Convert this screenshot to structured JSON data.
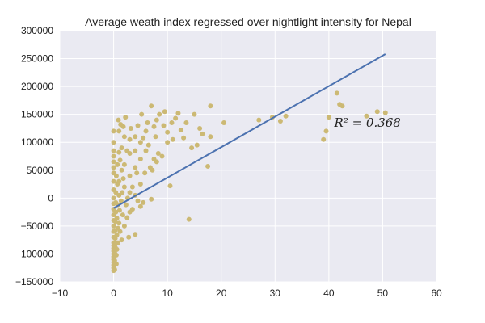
{
  "chart_data": {
    "type": "scatter",
    "title": "Average weath index regressed over nightlight intensity for Nepal",
    "xlabel": "",
    "ylabel": "",
    "xlim": [
      -10,
      60
    ],
    "ylim": [
      -150000,
      300000
    ],
    "xticks": [
      -10,
      0,
      10,
      20,
      30,
      40,
      50,
      60
    ],
    "yticks": [
      -150000,
      -100000,
      -50000,
      0,
      50000,
      100000,
      150000,
      200000,
      250000,
      300000
    ],
    "grid": true,
    "colors": {
      "background": "#EAEAF2",
      "grid": "#FFFFFF",
      "points": "#CCB974",
      "line": "#4C72B0"
    },
    "annotation": {
      "text": "R² = 0.368",
      "x": 41,
      "y": 135000
    },
    "regression": {
      "x": [
        0,
        50.5
      ],
      "y": [
        -18000,
        258000
      ]
    },
    "points": [
      [
        0,
        -130000
      ],
      [
        0,
        -125000
      ],
      [
        0,
        -120000
      ],
      [
        0,
        -115000
      ],
      [
        0,
        -110000
      ],
      [
        0,
        -105000
      ],
      [
        0,
        -100000
      ],
      [
        0,
        -95000
      ],
      [
        0,
        -90000
      ],
      [
        0,
        -85000
      ],
      [
        0,
        -80000
      ],
      [
        0,
        -70000
      ],
      [
        0,
        -60000
      ],
      [
        0,
        -50000
      ],
      [
        0,
        -40000
      ],
      [
        0,
        -30000
      ],
      [
        0,
        -20000
      ],
      [
        0,
        -10000
      ],
      [
        0,
        0
      ],
      [
        0,
        15000
      ],
      [
        0,
        30000
      ],
      [
        0,
        45000
      ],
      [
        0,
        55000
      ],
      [
        0,
        65000
      ],
      [
        0,
        75000
      ],
      [
        0,
        85000
      ],
      [
        0,
        100000
      ],
      [
        0,
        120000
      ],
      [
        0.2,
        -128000
      ],
      [
        0.2,
        -112000
      ],
      [
        0.2,
        -98000
      ],
      [
        0.3,
        -88000
      ],
      [
        0.3,
        -72000
      ],
      [
        0.3,
        -58000
      ],
      [
        0.3,
        -42000
      ],
      [
        0.4,
        -25000
      ],
      [
        0.4,
        -8000
      ],
      [
        0.4,
        10000
      ],
      [
        0.5,
        40000
      ],
      [
        0.5,
        -118000
      ],
      [
        0.5,
        -102000
      ],
      [
        0.6,
        -92000
      ],
      [
        0.6,
        -66000
      ],
      [
        0.6,
        -36000
      ],
      [
        0.7,
        25000
      ],
      [
        0.7,
        60000
      ],
      [
        0.8,
        -80000
      ],
      [
        0.8,
        -54000
      ],
      [
        0.8,
        -12000
      ],
      [
        0.9,
        140000
      ],
      [
        1,
        -45000
      ],
      [
        1,
        5000
      ],
      [
        1,
        30000
      ],
      [
        1,
        82000
      ],
      [
        1,
        120000
      ],
      [
        1.1,
        -22000
      ],
      [
        1.2,
        -60000
      ],
      [
        1.2,
        68000
      ],
      [
        1.3,
        132000
      ],
      [
        1.4,
        -5000
      ],
      [
        1.5,
        -75000
      ],
      [
        1.5,
        50000
      ],
      [
        1.5,
        90000
      ],
      [
        1.6,
        10000
      ],
      [
        1.7,
        -30000
      ],
      [
        1.8,
        128000
      ],
      [
        1.8,
        35000
      ],
      [
        2,
        -50000
      ],
      [
        2,
        20000
      ],
      [
        2,
        60000
      ],
      [
        2,
        110000
      ],
      [
        2.2,
        145000
      ],
      [
        2.3,
        -12000
      ],
      [
        2.5,
        -35000
      ],
      [
        2.5,
        85000
      ],
      [
        2.6,
        0
      ],
      [
        2.8,
        -70000
      ],
      [
        3,
        -25000
      ],
      [
        3,
        10000
      ],
      [
        3,
        40000
      ],
      [
        3,
        80000
      ],
      [
        3,
        105000
      ],
      [
        3.2,
        125000
      ],
      [
        3.5,
        -20000
      ],
      [
        3.5,
        20000
      ],
      [
        4,
        -65000
      ],
      [
        4,
        5000
      ],
      [
        4,
        55000
      ],
      [
        4,
        85000
      ],
      [
        4,
        110000
      ],
      [
        4.3,
        45000
      ],
      [
        4.5,
        -5000
      ],
      [
        4.5,
        130000
      ],
      [
        5,
        25000
      ],
      [
        5,
        70000
      ],
      [
        5,
        100000
      ],
      [
        5,
        -15000
      ],
      [
        5.2,
        150000
      ],
      [
        5.5,
        -8000
      ],
      [
        5.5,
        108000
      ],
      [
        5.8,
        45000
      ],
      [
        6,
        85000
      ],
      [
        6,
        120000
      ],
      [
        6.3,
        135000
      ],
      [
        6.5,
        95000
      ],
      [
        6.8,
        55000
      ],
      [
        7,
        -2000
      ],
      [
        7,
        165000
      ],
      [
        7.2,
        50000
      ],
      [
        7.5,
        70000
      ],
      [
        7.5,
        128000
      ],
      [
        7.8,
        110000
      ],
      [
        8,
        65000
      ],
      [
        8,
        140000
      ],
      [
        8.3,
        80000
      ],
      [
        8.5,
        150000
      ],
      [
        9,
        75000
      ],
      [
        9.3,
        130000
      ],
      [
        9.5,
        155000
      ],
      [
        10,
        100000
      ],
      [
        10,
        118000
      ],
      [
        10.5,
        22000
      ],
      [
        10.8,
        135000
      ],
      [
        11,
        105000
      ],
      [
        11.5,
        143000
      ],
      [
        12,
        152000
      ],
      [
        12.5,
        122000
      ],
      [
        13,
        108000
      ],
      [
        13.5,
        135000
      ],
      [
        14,
        -38000
      ],
      [
        14.5,
        90000
      ],
      [
        15,
        150000
      ],
      [
        15.5,
        95000
      ],
      [
        16,
        125000
      ],
      [
        16.5,
        115000
      ],
      [
        17.5,
        57000
      ],
      [
        18,
        110000
      ],
      [
        18,
        165000
      ],
      [
        20.5,
        135000
      ],
      [
        27,
        140000
      ],
      [
        29.5,
        145000
      ],
      [
        31,
        138000
      ],
      [
        32,
        147000
      ],
      [
        39,
        105000
      ],
      [
        39.5,
        120000
      ],
      [
        40,
        145000
      ],
      [
        41.5,
        188000
      ],
      [
        42,
        168000
      ],
      [
        42.5,
        165000
      ],
      [
        47,
        147000
      ],
      [
        49,
        155000
      ],
      [
        50.5,
        153000
      ]
    ]
  }
}
